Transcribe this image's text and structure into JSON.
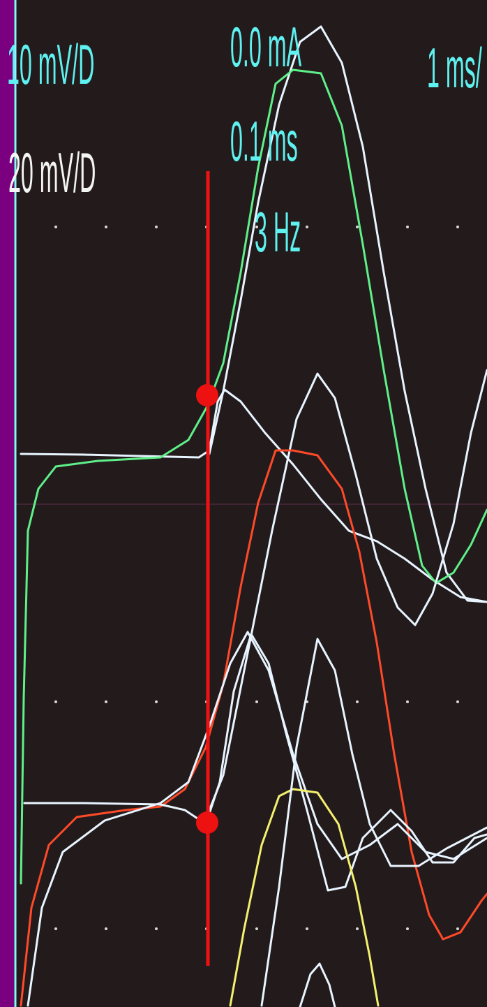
{
  "screen": {
    "left_labels": [
      "10 mV/D",
      "20 mV/D"
    ],
    "right_labels": [
      "0.0 mA",
      "0.1 ms",
      "3 Hz"
    ],
    "timebase": "1 ms/"
  }
}
